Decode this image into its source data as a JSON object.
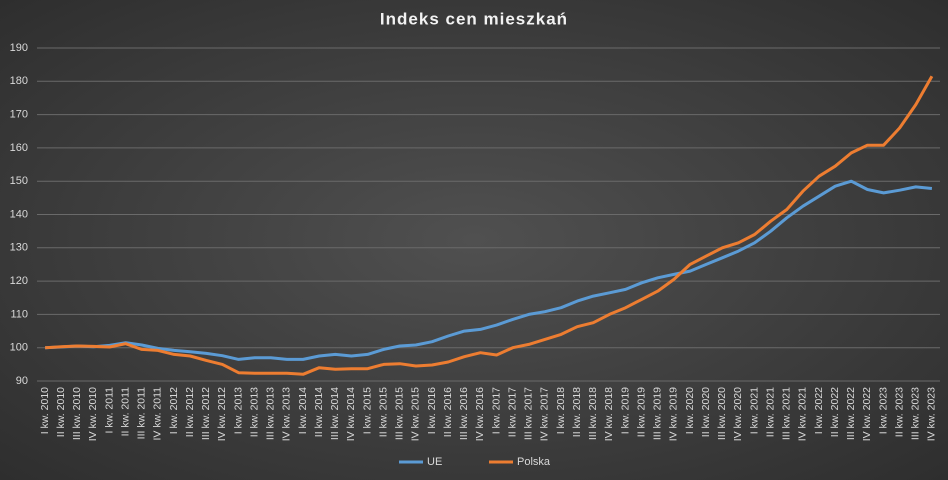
{
  "chart_data": {
    "type": "line",
    "title": "Indeks cen mieszkań",
    "categories": [
      "I kw. 2010",
      "II kw. 2010",
      "III kw. 2010",
      "IV kw. 2010",
      "I kw. 2011",
      "II kw. 2011",
      "III kw. 2011",
      "IV kw. 2011",
      "I kw. 2012",
      "II kw. 2012",
      "III kw. 2012",
      "IV kw. 2012",
      "I kw. 2013",
      "II kw. 2013",
      "III kw. 2013",
      "IV kw. 2013",
      "I kw. 2014",
      "II kw. 2014",
      "III kw. 2014",
      "IV kw. 2014",
      "I kw. 2015",
      "II kw. 2015",
      "III kw. 2015",
      "IV kw. 2015",
      "I kw. 2016",
      "II kw. 2016",
      "III kw. 2016",
      "IV kw. 2016",
      "I kw. 2017",
      "II kw. 2017",
      "III kw. 2017",
      "IV kw. 2017",
      "I kw. 2018",
      "II kw. 2018",
      "III kw. 2018",
      "IV kw. 2018",
      "I kw. 2019",
      "II kw. 2019",
      "III kw. 2019",
      "IV kw. 2019",
      "I kw. 2020",
      "II kw. 2020",
      "III kw. 2020",
      "IV kw. 2020",
      "I kw. 2021",
      "II kw. 2021",
      "III kw. 2021",
      "IV kw. 2021",
      "I kw. 2022",
      "II kw. 2022",
      "III kw. 2022",
      "IV kw. 2022",
      "I kw. 2023",
      "II kw. 2023",
      "III kw. 2023",
      "IV kw. 2023"
    ],
    "series": [
      {
        "name": "UE",
        "color": "#5b9bd5",
        "values": [
          100,
          100.2,
          100.5,
          100.3,
          100.7,
          101.5,
          100.8,
          99.8,
          99.2,
          98.8,
          98.3,
          97.6,
          96.5,
          97,
          97,
          96.5,
          96.5,
          97.5,
          98,
          97.5,
          98,
          99.5,
          100.5,
          100.8,
          101.8,
          103.5,
          105,
          105.5,
          106.8,
          108.5,
          110,
          110.8,
          112,
          114,
          115.5,
          116.5,
          117.5,
          119.5,
          121,
          122,
          123,
          125,
          127,
          129,
          131.5,
          135,
          139,
          142.5,
          145.5,
          148.5,
          150,
          147.5,
          146.5,
          147.3,
          148.3,
          147.8
        ]
      },
      {
        "name": "Polska",
        "color": "#ed7d31",
        "values": [
          100,
          100.3,
          100.5,
          100.4,
          100.2,
          101.2,
          99.5,
          99.2,
          98,
          97.5,
          96.2,
          95,
          92.5,
          92.3,
          92.3,
          92.3,
          92,
          94,
          93.5,
          93.7,
          93.7,
          95,
          95.2,
          94.5,
          94.8,
          95.7,
          97.3,
          98.5,
          97.8,
          100,
          101,
          102.5,
          104,
          106.3,
          107.5,
          110,
          112,
          114.5,
          117,
          120.5,
          125,
          127.5,
          130,
          131.5,
          134,
          138,
          141.5,
          147,
          151.5,
          154.5,
          158.5,
          160.8,
          160.8,
          166,
          173,
          181.5
        ]
      }
    ],
    "ylim": [
      90,
      190
    ],
    "yticks": [
      90,
      100,
      110,
      120,
      130,
      140,
      150,
      160,
      170,
      180,
      190
    ],
    "grid": true,
    "legend": "bottom"
  }
}
